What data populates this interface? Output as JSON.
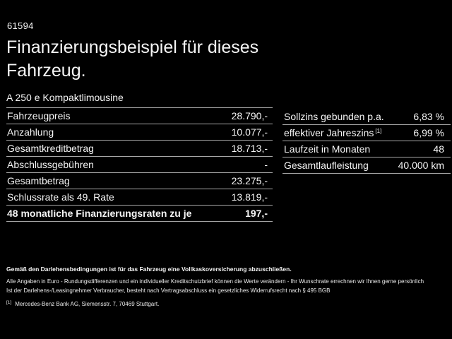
{
  "page": {
    "ref_code": "61594",
    "title_line1": "Finanzierungsbeispiel für dieses",
    "title_line2": "Fahrzeug.",
    "vehicle_model": "A 250 e Kompaktlimousine"
  },
  "finance_table": {
    "rows": [
      {
        "label": "Fahrzeugpreis",
        "value": "28.790,-"
      },
      {
        "label": "Anzahlung",
        "value": "10.077,-"
      },
      {
        "label": "Gesamtkreditbetrag",
        "value": "18.713,-"
      },
      {
        "label": "Abschlussgebühren",
        "value": "-"
      },
      {
        "label": "Gesamtbetrag",
        "value": "23.275,-"
      },
      {
        "label": "Schlussrate als 49. Rate",
        "value": "13.819,-"
      },
      {
        "label": "48 monatliche Finanzierungsraten zu je",
        "value": "197,-"
      }
    ]
  },
  "conditions_table": {
    "rows": [
      {
        "label": "Sollzins gebunden p.a.",
        "sup": "",
        "value": "6,83 %"
      },
      {
        "label": "effektiver Jahreszins",
        "sup": "[1]",
        "value": "6,99 %"
      },
      {
        "label": "Laufzeit in Monaten",
        "sup": "",
        "value": "48"
      },
      {
        "label": "Gesamtlaufleistung",
        "sup": "",
        "value": "40.000 km"
      }
    ]
  },
  "footer": {
    "insurance_note": "Gemäß den Darlehensbedingungen ist für das Fahrzeug eine Vollkaskoversicherung abzuschließen.",
    "disclaimer_line1": "Alle Angaben in Euro - Rundungsdifferenzen und ein individueller Kreditschutzbrief können die Werte verändern - Ihr Wunschrate errechnen wir Ihnen gerne persönlich",
    "disclaimer_line2": "Ist der Darlehens-/Leasingnehmer Verbraucher, besteht nach Vertragsabschluss ein gesetzliches Widerrufsrecht nach § 495 BGB",
    "footnote_marker": "[1]",
    "footnote_text": "Mercedes-Benz Bank AG, Siemensstr. 7, 70469 Stuttgart."
  },
  "colors": {
    "background": "#000000",
    "text": "#f5f5f5",
    "divider": "#a8a8a8"
  }
}
